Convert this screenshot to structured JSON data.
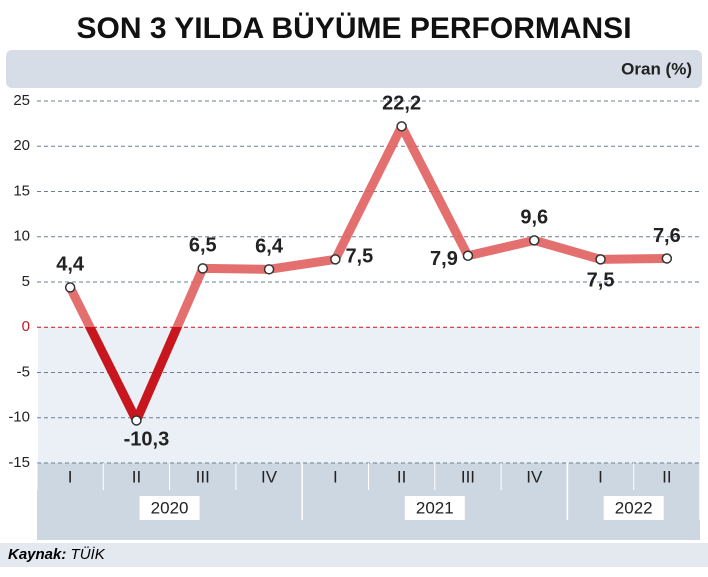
{
  "chart_data": {
    "type": "line",
    "title": "SON 3 YILDA BÜYÜME PERFORMANSI",
    "y_label": "Oran (%)",
    "categories": [
      "I",
      "II",
      "III",
      "IV",
      "I",
      "II",
      "III",
      "IV",
      "I",
      "II"
    ],
    "years": [
      {
        "label": "2020",
        "quarters": 4
      },
      {
        "label": "2021",
        "quarters": 4
      },
      {
        "label": "2022",
        "quarters": 2
      }
    ],
    "values": [
      4.4,
      -10.3,
      6.5,
      6.4,
      7.5,
      22.2,
      7.9,
      9.6,
      7.5,
      7.6
    ],
    "value_labels": [
      "4,4",
      "-10,3",
      "6,5",
      "6,4",
      "7,5",
      "22,2",
      "7,9",
      "9,6",
      "7,5",
      "7,6"
    ],
    "color": "#e0605e",
    "negative_color": "#c8161e",
    "ylim": [
      -15,
      25
    ],
    "yticks": [
      -15,
      -10,
      -5,
      0,
      5,
      10,
      15,
      20,
      25
    ],
    "grid": true,
    "source": {
      "label": "Kaynak:",
      "text": "TÜİK"
    }
  }
}
